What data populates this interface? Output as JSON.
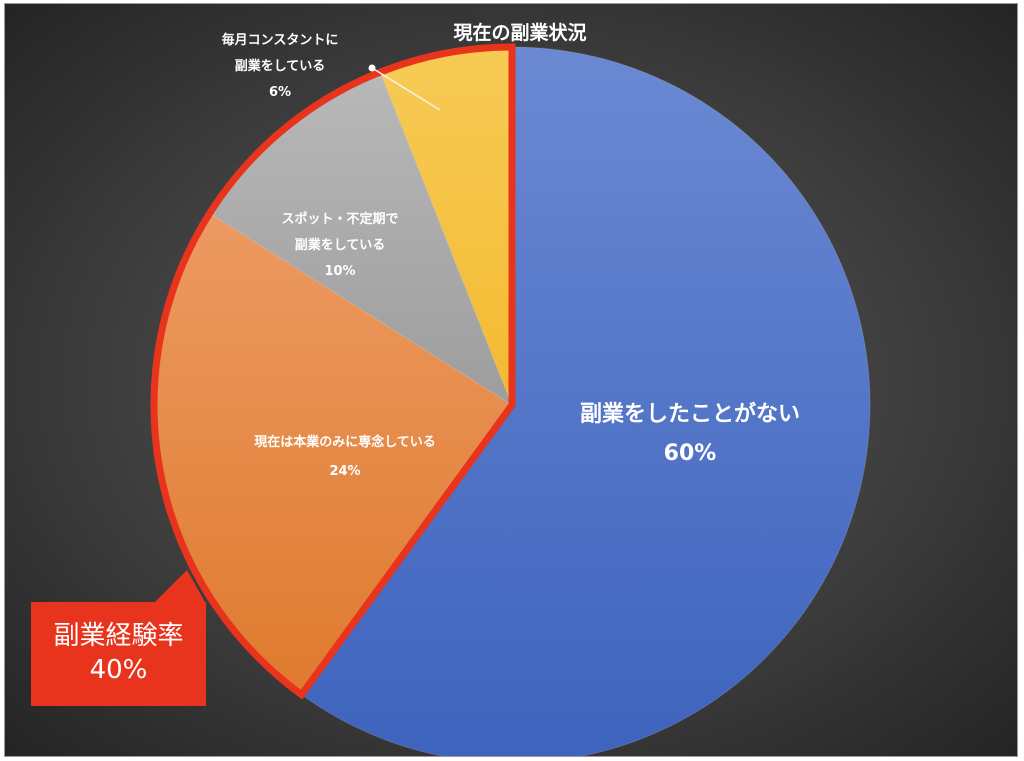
{
  "chart_data": {
    "type": "pie",
    "title": "現在の副業状況",
    "slices": [
      {
        "label_lines": [
          "副業をしたことがない"
        ],
        "value": 60,
        "value_label": "60%",
        "color": "#4a6fc4"
      },
      {
        "label_lines": [
          "現在は本業のみに専念している"
        ],
        "value": 24,
        "value_label": "24%",
        "color": "#e07e3c"
      },
      {
        "label_lines": [
          "スポット・不定期で",
          "副業をしている"
        ],
        "value": 10,
        "value_label": "10%",
        "color": "#a6a6a6"
      },
      {
        "label_lines": [
          "毎月コンスタントに",
          "副業をしている"
        ],
        "value": 6,
        "value_label": "6%",
        "color": "#f5be3c"
      }
    ],
    "highlight": {
      "label": "副業経験率",
      "value": 40,
      "value_label": "40%",
      "color": "#e8341c"
    }
  }
}
